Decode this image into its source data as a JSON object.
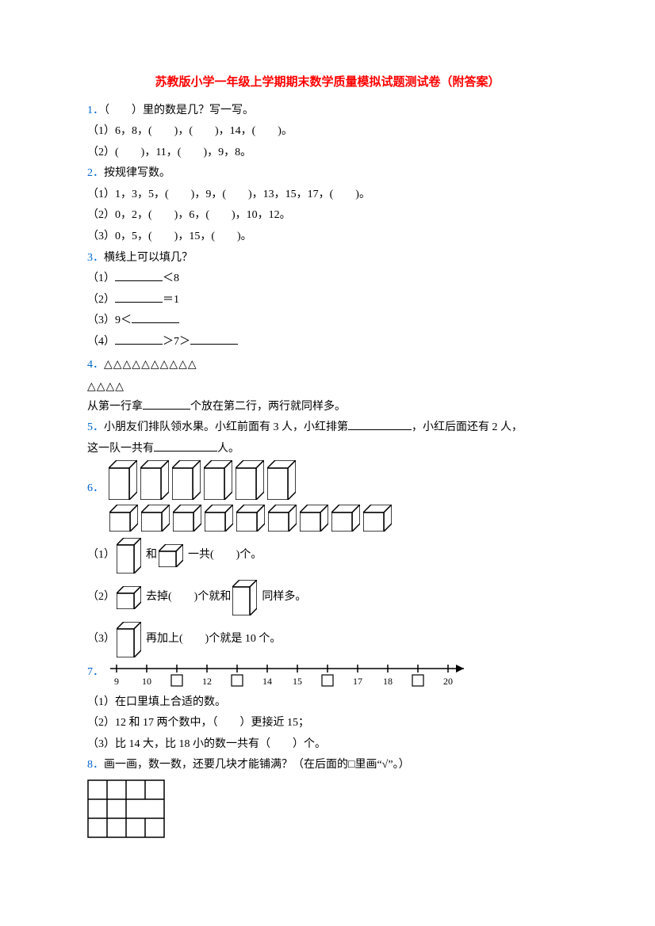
{
  "title": "苏教版小学一年级上学期期末数学质量模拟试题测试卷（附答案）",
  "q1": {
    "num": "1．",
    "prompt": "（　　）里的数是几？写一写。",
    "a": "（1）6，8，(　　)，(　　)，14，(　　)。",
    "b": "（2）(　　)，11，(　　)，9，8。"
  },
  "q2": {
    "num": "2．",
    "prompt": "按规律写数。",
    "a": "（1）1，3，5，(　　)，9，(　　)，13，15，17，(　　)。",
    "b": "（2）0，2，(　　)，6，(　　)，10，12。",
    "c": "（3）0，5，(　　)，15，(　　)。"
  },
  "q3": {
    "num": "3．",
    "prompt": "横线上可以填几？",
    "a_pre": "（1）",
    "a_post": "＜8",
    "b_pre": "（2）",
    "b_post": "＝1",
    "c_pre": "（3）9＜",
    "d_pre": "（4）",
    "d_mid": "＞7＞"
  },
  "q4": {
    "num": "4．",
    "row1": "△△△△△△△△△△",
    "row2": "△△△△",
    "tail_a": "从第一行拿",
    "tail_b": "个放在第二行，两行就同样多。"
  },
  "q5": {
    "num": "5．",
    "a": "小朋友们排队领水果。小红前面有 3 人，小红排第",
    "b": "，小红后面还有 2 人，",
    "c": "这一队一共有",
    "d": "人。"
  },
  "q6": {
    "num": "6．",
    "s1a": "（1）",
    "s1b": "和",
    "s1c": "一共(　　)个。",
    "s2a": "（2）",
    "s2b": "去掉(　　)个就和",
    "s2c": "同样多。",
    "s3a": "（3）",
    "s3b": "再加上(　　)个就是 10 个。"
  },
  "q7": {
    "num": "7．",
    "ticks": [
      "9",
      "10",
      "",
      "12",
      "",
      "14",
      "15",
      "",
      "17",
      "18",
      "",
      "20"
    ],
    "a": "（1）在口里填上合适的数。",
    "b": "（2）12 和 17 两个数中，（　　）更接近 15；",
    "c": "（3）比 14 大，比 18 小的数一共有（　　）个。"
  },
  "q8": {
    "num": "8．",
    "prompt": "画一画，数一数，还要几块才能铺满？（在后面的□里画“√”。）"
  },
  "colors": {
    "title": "#ff0000",
    "qnum": "#0066cc",
    "text": "#000000",
    "bg": "#ffffff"
  }
}
